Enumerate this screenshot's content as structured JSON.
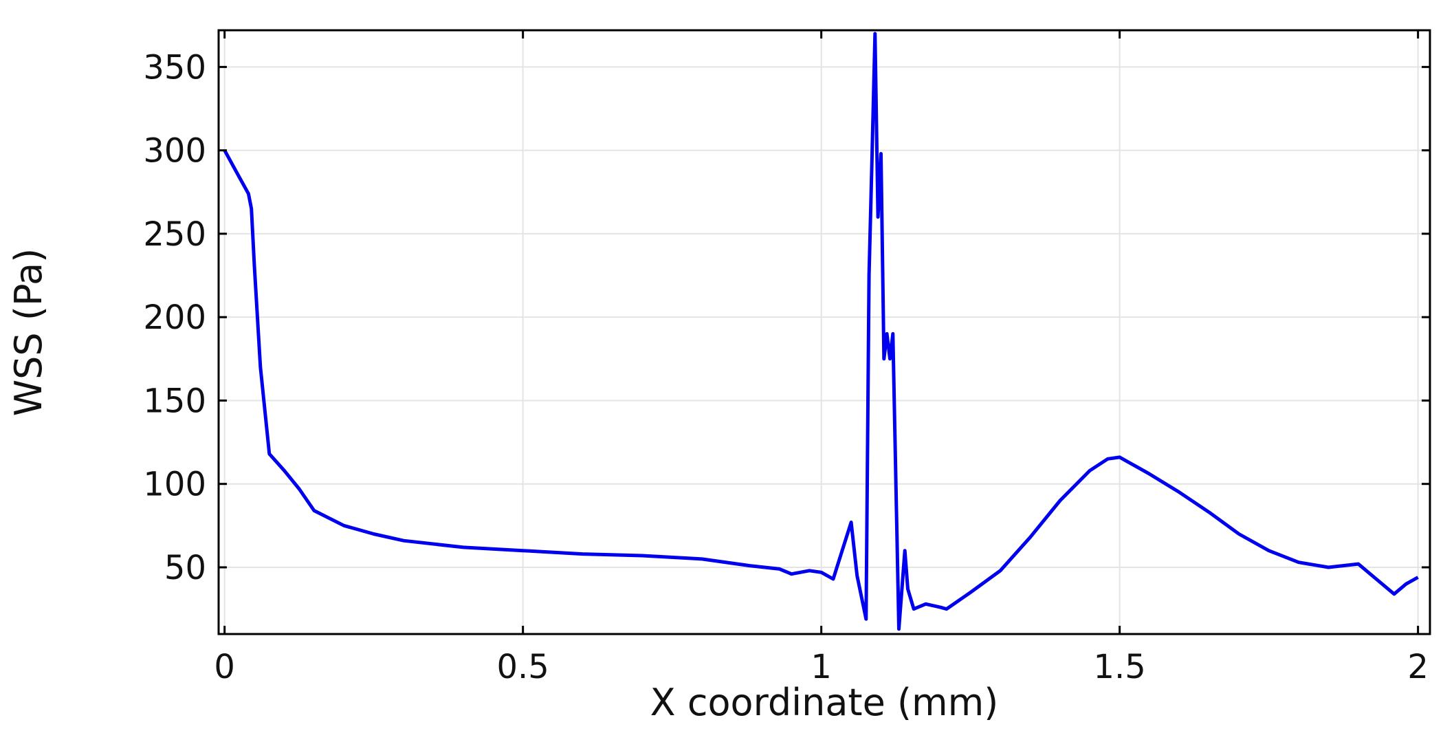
{
  "chart_data": {
    "type": "line",
    "title": "",
    "xlabel": "X coordinate (mm)",
    "ylabel": "WSS (Pa)",
    "xlim": [
      -0.01,
      2.02
    ],
    "ylim": [
      10,
      372
    ],
    "grid": true,
    "x_ticks": [
      {
        "value": 0,
        "label": "0"
      },
      {
        "value": 0.5,
        "label": "0.5"
      },
      {
        "value": 1,
        "label": "1"
      },
      {
        "value": 1.5,
        "label": "1.5"
      },
      {
        "value": 2,
        "label": "2"
      }
    ],
    "y_ticks": [
      {
        "value": 50,
        "label": "50"
      },
      {
        "value": 100,
        "label": "100"
      },
      {
        "value": 150,
        "label": "150"
      },
      {
        "value": 200,
        "label": "200"
      },
      {
        "value": 250,
        "label": "250"
      },
      {
        "value": 300,
        "label": "300"
      },
      {
        "value": 350,
        "label": "350"
      }
    ],
    "colors": {
      "line": "#0000ee",
      "grid": "#e4e4e4",
      "frame": "#000000"
    },
    "series": [
      {
        "points": [
          [
            0.0,
            300
          ],
          [
            0.02,
            287
          ],
          [
            0.04,
            274
          ],
          [
            0.045,
            265
          ],
          [
            0.05,
            230
          ],
          [
            0.06,
            170
          ],
          [
            0.075,
            118
          ],
          [
            0.1,
            108
          ],
          [
            0.125,
            97
          ],
          [
            0.15,
            84
          ],
          [
            0.2,
            75
          ],
          [
            0.25,
            70
          ],
          [
            0.3,
            66
          ],
          [
            0.4,
            62
          ],
          [
            0.5,
            60
          ],
          [
            0.6,
            58
          ],
          [
            0.7,
            57
          ],
          [
            0.8,
            55
          ],
          [
            0.88,
            51
          ],
          [
            0.93,
            49
          ],
          [
            0.95,
            46
          ],
          [
            0.98,
            48
          ],
          [
            1.0,
            47
          ],
          [
            1.02,
            43
          ],
          [
            1.035,
            60
          ],
          [
            1.05,
            77
          ],
          [
            1.06,
            45
          ],
          [
            1.075,
            19
          ],
          [
            1.08,
            225
          ],
          [
            1.085,
            295
          ],
          [
            1.09,
            370
          ],
          [
            1.095,
            260
          ],
          [
            1.1,
            298
          ],
          [
            1.105,
            175
          ],
          [
            1.11,
            190
          ],
          [
            1.115,
            175
          ],
          [
            1.12,
            190
          ],
          [
            1.125,
            100
          ],
          [
            1.13,
            13
          ],
          [
            1.14,
            60
          ],
          [
            1.145,
            37
          ],
          [
            1.155,
            25
          ],
          [
            1.175,
            28
          ],
          [
            1.2,
            26
          ],
          [
            1.21,
            25
          ],
          [
            1.25,
            35
          ],
          [
            1.3,
            48
          ],
          [
            1.35,
            68
          ],
          [
            1.4,
            90
          ],
          [
            1.45,
            108
          ],
          [
            1.48,
            115
          ],
          [
            1.5,
            116
          ],
          [
            1.55,
            106
          ],
          [
            1.6,
            95
          ],
          [
            1.65,
            83
          ],
          [
            1.7,
            70
          ],
          [
            1.75,
            60
          ],
          [
            1.8,
            53
          ],
          [
            1.85,
            50
          ],
          [
            1.9,
            52
          ],
          [
            1.93,
            43
          ],
          [
            1.96,
            34
          ],
          [
            1.98,
            40
          ],
          [
            2.0,
            44
          ]
        ]
      }
    ]
  }
}
